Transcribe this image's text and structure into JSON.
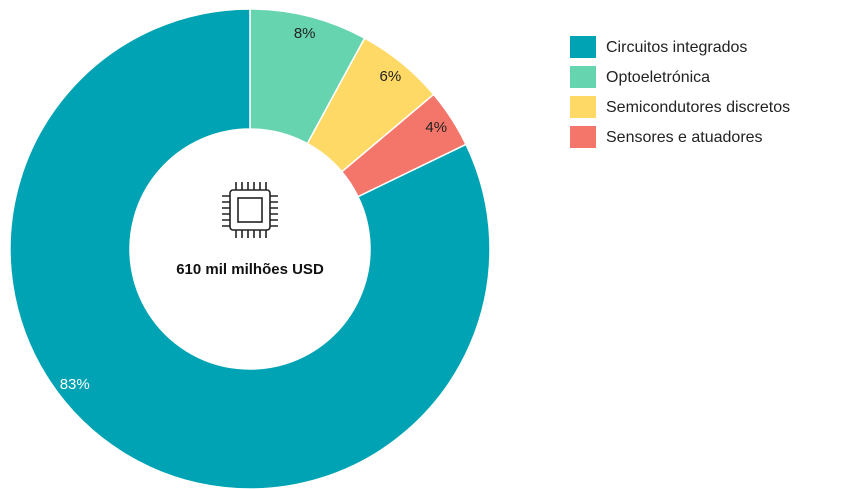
{
  "chart_data": {
    "type": "donut",
    "center_text": "610 mil milhões USD",
    "categories": [
      "Circuitos integrados",
      "Optoeletrónica",
      "Semicondutores discretos",
      "Sensores e atuadores"
    ],
    "values": [
      83,
      8,
      6,
      4
    ],
    "value_labels": [
      "83%",
      "8%",
      "6%",
      "4%"
    ],
    "colors": [
      "#00a3b4",
      "#66d4ae",
      "#ffd966",
      "#f4756a"
    ],
    "legend": "right"
  }
}
